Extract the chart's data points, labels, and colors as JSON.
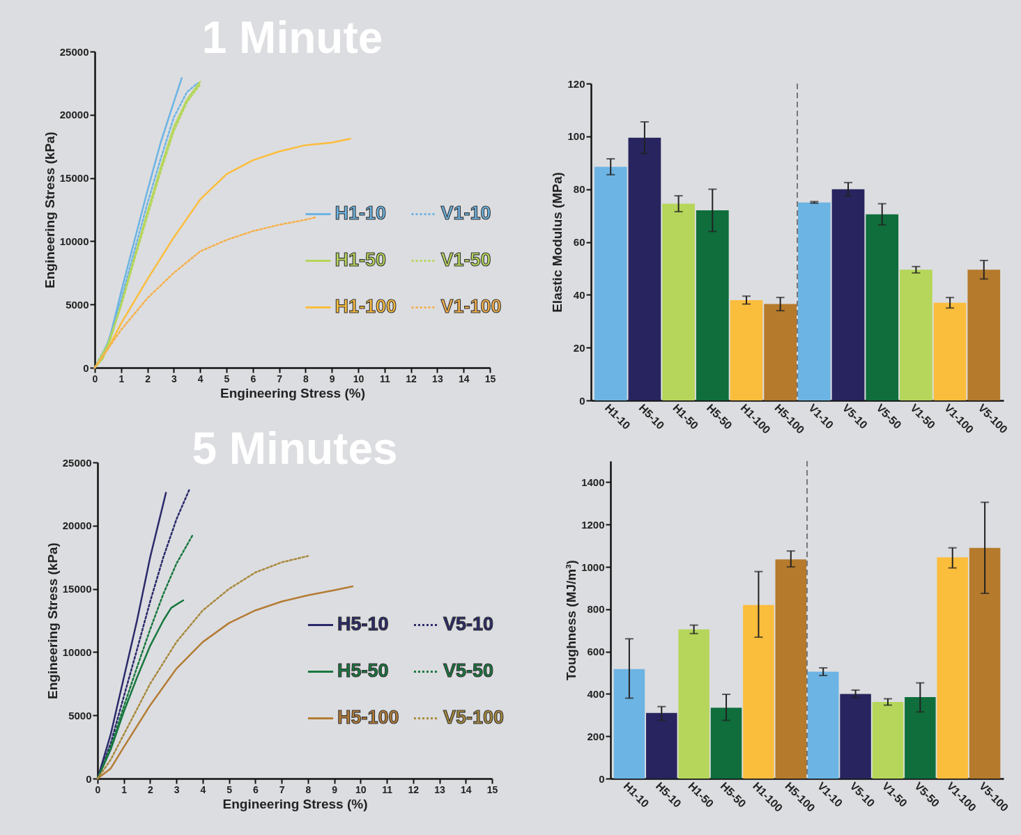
{
  "chart_data": [
    {
      "type": "line",
      "title": "1 Minute",
      "xlabel": "Engineering Stress (%)",
      "ylabel": "Engineering Stress (kPa)",
      "xlim": [
        0,
        15
      ],
      "xticks": [
        0,
        1,
        2,
        3,
        4,
        5,
        6,
        7,
        8,
        9,
        10,
        11,
        12,
        13,
        14,
        15
      ],
      "ylim": [
        0,
        25000
      ],
      "yticks": [
        0,
        5000,
        10000,
        15000,
        20000,
        25000
      ],
      "legend": "right",
      "series": [
        {
          "name": "H1-10",
          "color": "#6cb4e4",
          "line_style": "solid",
          "x": [
            0,
            0.3,
            0.6,
            1,
            1.5,
            2,
            2.5,
            3,
            3.3
          ],
          "values": [
            0,
            800,
            2600,
            6000,
            10000,
            14000,
            17800,
            21000,
            22900
          ]
        },
        {
          "name": "V1-10",
          "color": "#6cb4e4",
          "line_style": "dotted",
          "x": [
            0,
            0.5,
            1,
            1.5,
            2,
            2.5,
            3,
            3.5,
            3.9
          ],
          "values": [
            0,
            2000,
            5400,
            9200,
            13000,
            16500,
            19800,
            21800,
            22500
          ]
        },
        {
          "name": "H1-50",
          "color": "#b5d65a",
          "line_style": "solid",
          "x": [
            0,
            0.3,
            0.6,
            1,
            1.5,
            2,
            2.5,
            3,
            3.5,
            4
          ],
          "values": [
            0,
            700,
            2300,
            5000,
            8700,
            12300,
            15800,
            19000,
            21200,
            22600
          ]
        },
        {
          "name": "V1-50",
          "color": "#b5d65a",
          "line_style": "dotted",
          "x": [
            0,
            0.5,
            1,
            1.5,
            2,
            2.5,
            3,
            3.5,
            4
          ],
          "values": [
            0,
            1900,
            4900,
            8500,
            12000,
            15500,
            18700,
            21000,
            22400
          ]
        },
        {
          "name": "H1-100",
          "color": "#fbbd3c",
          "line_style": "solid",
          "x": [
            0,
            0.5,
            1,
            2,
            3,
            4,
            5,
            6,
            7,
            8,
            9,
            9.7
          ],
          "values": [
            0,
            1500,
            3500,
            7000,
            10300,
            13300,
            15300,
            16400,
            17100,
            17600,
            17800,
            18100
          ]
        },
        {
          "name": "V1-100",
          "color": "#f5b04a",
          "line_style": "dotted",
          "x": [
            0,
            0.5,
            1,
            2,
            3,
            4,
            5,
            6,
            7,
            8,
            8.4
          ],
          "values": [
            0,
            1500,
            3000,
            5500,
            7500,
            9200,
            10100,
            10800,
            11300,
            11700,
            11900
          ]
        }
      ]
    },
    {
      "type": "bar",
      "ylabel": "Elastic Modulus (MPa)",
      "ylim": [
        0,
        120
      ],
      "yticks": [
        0,
        20,
        40,
        60,
        80,
        100,
        120
      ],
      "categories": [
        "H1-10",
        "H5-10",
        "H1-50",
        "H5-50",
        "H1-100",
        "H5-100",
        "V1-10",
        "V5-10",
        "V5-50",
        "V1-50",
        "V1-100",
        "V5-100"
      ],
      "values": [
        88.5,
        99.5,
        74.5,
        72,
        38,
        36.5,
        75,
        80,
        70.5,
        49.5,
        37,
        49.5
      ],
      "errors": [
        3,
        6,
        3,
        8,
        1.5,
        2.5,
        0.3,
        2.5,
        4,
        1.2,
        2,
        3.5
      ],
      "colors": [
        "#6cb4e4",
        "#27245f",
        "#b5d65a",
        "#0f6e3c",
        "#fbbd3c",
        "#b57a2c",
        "#6cb4e4",
        "#27245f",
        "#0f6e3c",
        "#b5d65a",
        "#fbbd3c",
        "#b57a2c"
      ],
      "ref_lines": [
        {
          "axis": "x",
          "value": "V1-10",
          "line_style": "dashed",
          "color": "#777777"
        }
      ]
    },
    {
      "type": "line",
      "title": "5 Minutes",
      "xlabel": "Engineering Stress (%)",
      "ylabel": "Engineering Stress (kPa)",
      "xlim": [
        0,
        15
      ],
      "xticks": [
        0,
        1,
        2,
        3,
        4,
        5,
        6,
        7,
        8,
        9,
        10,
        11,
        12,
        13,
        14,
        15
      ],
      "ylim": [
        0,
        25000
      ],
      "yticks": [
        0,
        5000,
        10000,
        15000,
        20000,
        25000
      ],
      "legend": "right",
      "series": [
        {
          "name": "H5-10",
          "color": "#2b2a6b",
          "line_style": "solid",
          "x": [
            0,
            0.5,
            1,
            1.5,
            2,
            2.6
          ],
          "values": [
            0,
            3500,
            8000,
            12500,
            17500,
            22600
          ]
        },
        {
          "name": "V5-10",
          "color": "#2b2a6b",
          "line_style": "dotted",
          "x": [
            0,
            0.5,
            1,
            1.5,
            2,
            2.5,
            3,
            3.5
          ],
          "values": [
            0,
            2800,
            6500,
            10200,
            14000,
            17500,
            20500,
            22900
          ]
        },
        {
          "name": "H5-50",
          "color": "#18773f",
          "line_style": "solid",
          "x": [
            0,
            0.5,
            1,
            1.5,
            2,
            2.5,
            2.8,
            3.26
          ],
          "values": [
            0,
            2300,
            5300,
            8000,
            10500,
            12500,
            13500,
            14100
          ]
        },
        {
          "name": "V5-50",
          "color": "#18773f",
          "line_style": "dotted",
          "x": [
            0,
            0.5,
            1,
            1.5,
            2,
            2.5,
            3,
            3.6
          ],
          "values": [
            0,
            2500,
            5700,
            8800,
            11800,
            14600,
            17000,
            19200
          ]
        },
        {
          "name": "H5-100",
          "color": "#b47c35",
          "line_style": "solid",
          "x": [
            0,
            0.5,
            1,
            2,
            3,
            4,
            5,
            6,
            7,
            8,
            9,
            9.7
          ],
          "values": [
            0,
            800,
            2500,
            5800,
            8700,
            10800,
            12300,
            13300,
            14000,
            14500,
            14900,
            15200
          ]
        },
        {
          "name": "V5-100",
          "color": "#a8893c",
          "line_style": "dotted",
          "x": [
            0,
            0.5,
            1,
            2,
            3,
            4,
            5,
            6,
            7,
            8
          ],
          "values": [
            0,
            1500,
            3500,
            7500,
            10800,
            13300,
            15000,
            16300,
            17100,
            17600
          ]
        }
      ]
    },
    {
      "type": "bar",
      "ylabel": "Toughness (MJ/m³)",
      "ylim": [
        0,
        1500
      ],
      "yticks": [
        0,
        200,
        400,
        600,
        800,
        1000,
        1200,
        1400
      ],
      "categories": [
        "H1-10",
        "H5-10",
        "H1-50",
        "H5-50",
        "H1-100",
        "H5-100",
        "V1-10",
        "V5-10",
        "V1-50",
        "V5-50",
        "V1-100",
        "V5-100"
      ],
      "values": [
        517,
        310,
        705,
        335,
        820,
        1035,
        505,
        400,
        362,
        385,
        1045,
        1090
      ],
      "errors": [
        [
          380,
          660
        ],
        [
          275,
          340
        ],
        20,
        [
          275,
          398
        ],
        [
          668,
          978
        ],
        [
          1000,
          1075
        ],
        18,
        18,
        15,
        [
          315,
          452
        ],
        [
          995,
          1090
        ],
        [
          875,
          1305
        ]
      ],
      "colors": [
        "#6cb4e4",
        "#27245f",
        "#b5d65a",
        "#0f6e3c",
        "#fbbd3c",
        "#b57a2c",
        "#6cb4e4",
        "#27245f",
        "#b5d65a",
        "#0f6e3c",
        "#fbbd3c",
        "#b57a2c"
      ],
      "ref_lines": [
        {
          "axis": "x",
          "value": "V1-10",
          "line_style": "dashed",
          "color": "#777777"
        }
      ]
    }
  ]
}
